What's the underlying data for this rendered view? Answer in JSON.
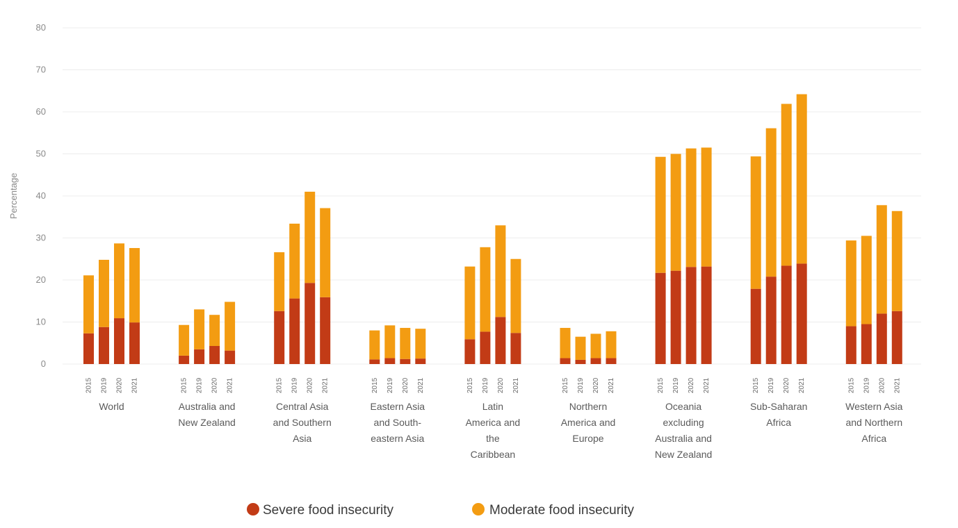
{
  "chart_data": {
    "type": "bar",
    "stacked": true,
    "ylabel": "Percentage",
    "ylim": [
      0,
      80
    ],
    "yticks": [
      "0",
      "10",
      "20",
      "30",
      "40",
      "50",
      "60",
      "70",
      "80"
    ],
    "grid": true,
    "legend_position": "bottom",
    "series_colors": {
      "severe": "#c23b16",
      "moderate": "#f39c12"
    },
    "legend": [
      {
        "label": "Severe food insecurity",
        "color": "#c23b16"
      },
      {
        "label": "Moderate food insecurity",
        "color": "#f39c12"
      }
    ],
    "regions": [
      {
        "name_lines": [
          "World"
        ],
        "years": [
          "2015",
          "2019",
          "2020",
          "2021"
        ],
        "severe": [
          7.3,
          8.8,
          10.9,
          9.9
        ],
        "total": [
          21.1,
          24.8,
          28.7,
          27.6
        ]
      },
      {
        "name_lines": [
          "Australia and",
          "New Zealand"
        ],
        "years": [
          "2015",
          "2019",
          "2020",
          "2021"
        ],
        "severe": [
          2.0,
          3.5,
          4.3,
          3.2
        ],
        "total": [
          9.3,
          13.0,
          11.7,
          14.8
        ]
      },
      {
        "name_lines": [
          "Central Asia",
          "and Southern",
          "Asia"
        ],
        "years": [
          "2015",
          "2019",
          "2020",
          "2021"
        ],
        "severe": [
          12.6,
          15.6,
          19.3,
          15.9
        ],
        "total": [
          26.6,
          33.4,
          41.0,
          37.1
        ]
      },
      {
        "name_lines": [
          "Eastern Asia",
          "and South-",
          "eastern Asia"
        ],
        "years": [
          "2015",
          "2019",
          "2020",
          "2021"
        ],
        "severe": [
          1.1,
          1.4,
          1.2,
          1.3
        ],
        "total": [
          8.0,
          9.2,
          8.6,
          8.4
        ]
      },
      {
        "name_lines": [
          "Latin",
          "America and",
          "the",
          "Caribbean"
        ],
        "years": [
          "2015",
          "2019",
          "2020",
          "2021"
        ],
        "severe": [
          5.9,
          7.7,
          11.2,
          7.4
        ],
        "total": [
          23.2,
          27.8,
          33.0,
          25.0
        ]
      },
      {
        "name_lines": [
          "Northern",
          "America and",
          "Europe"
        ],
        "years": [
          "2015",
          "2019",
          "2020",
          "2021"
        ],
        "severe": [
          1.4,
          1.0,
          1.4,
          1.4
        ],
        "total": [
          8.6,
          6.5,
          7.2,
          7.8
        ]
      },
      {
        "name_lines": [
          "Oceania",
          "excluding",
          "Australia and",
          "New Zealand"
        ],
        "years": [
          "2015",
          "2019",
          "2020",
          "2021"
        ],
        "severe": [
          21.7,
          22.2,
          23.1,
          23.2
        ],
        "total": [
          49.3,
          50.0,
          51.3,
          51.5
        ]
      },
      {
        "name_lines": [
          "Sub-Saharan",
          "Africa"
        ],
        "years": [
          "2015",
          "2019",
          "2020",
          "2021"
        ],
        "severe": [
          17.9,
          20.8,
          23.4,
          23.9
        ],
        "total": [
          49.4,
          56.1,
          61.9,
          64.2
        ]
      },
      {
        "name_lines": [
          "Western Asia",
          "and Northern",
          "Africa"
        ],
        "years": [
          "2015",
          "2019",
          "2020",
          "2021"
        ],
        "severe": [
          9.0,
          9.5,
          12.0,
          12.6
        ],
        "total": [
          29.4,
          30.5,
          37.8,
          36.4
        ]
      }
    ]
  }
}
